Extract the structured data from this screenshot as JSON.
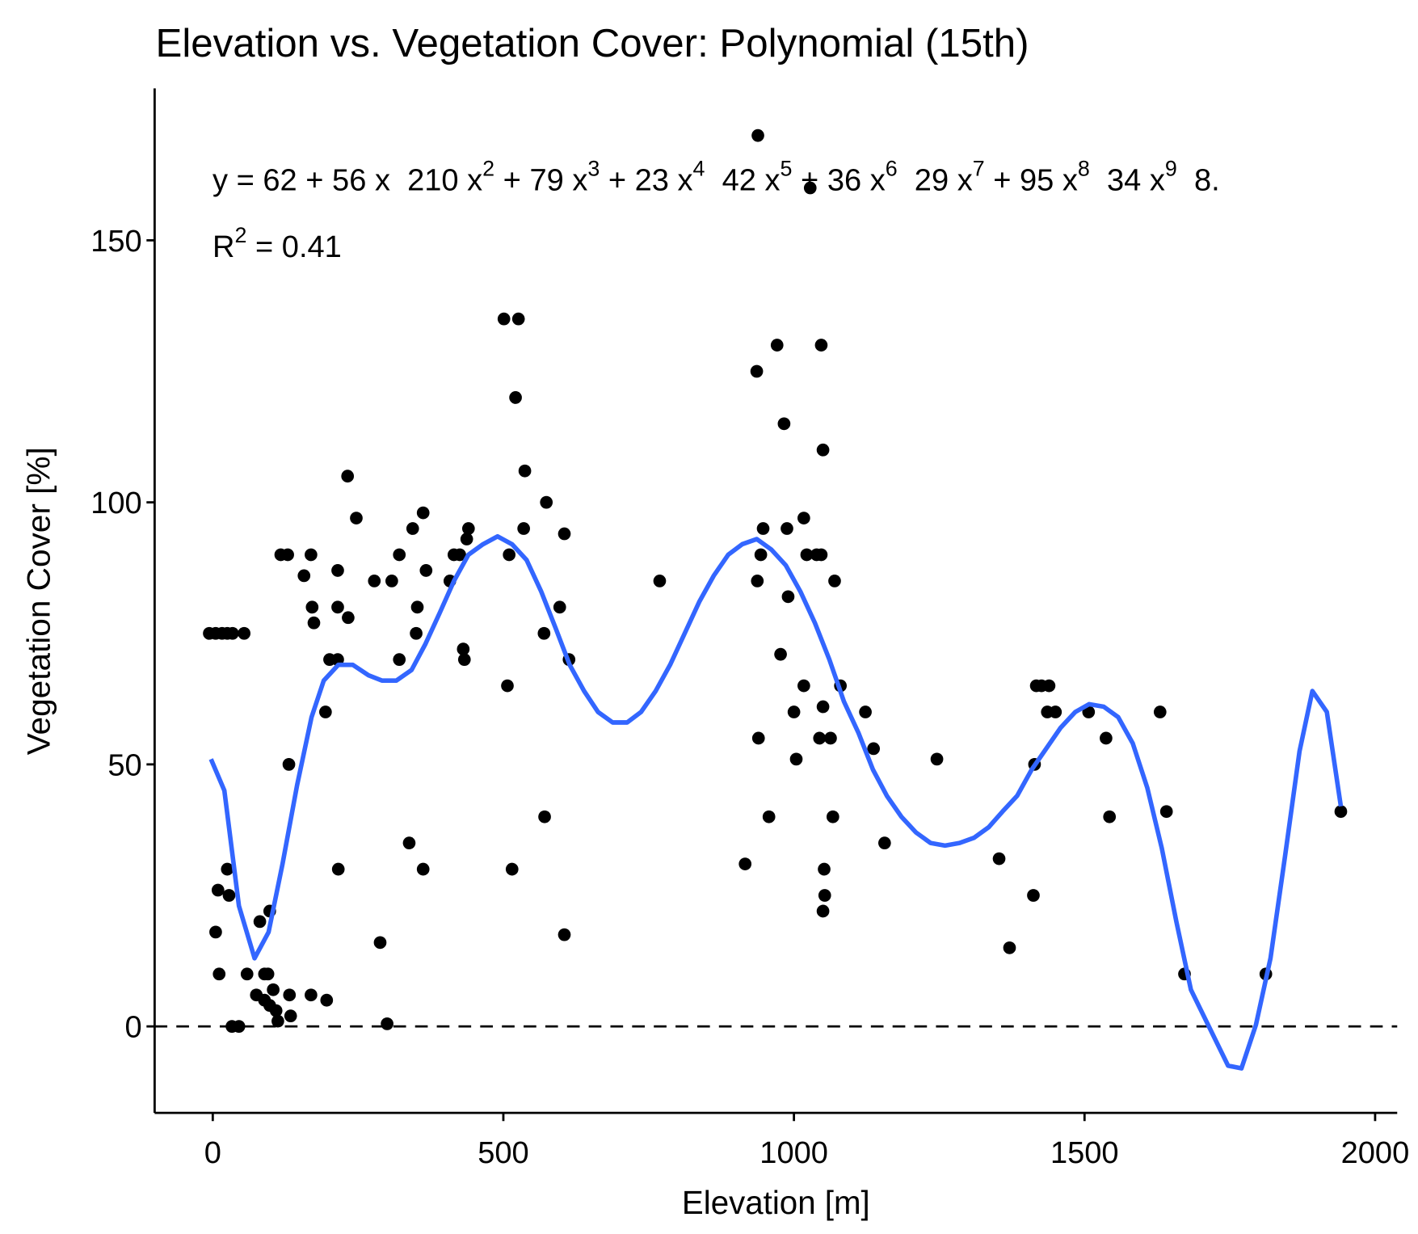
{
  "chart_data": {
    "type": "scatter",
    "title": "Elevation vs. Vegetation Cover: Polynomial (15th)",
    "x_label": "Elevation [m]",
    "y_label": "Vegetation Cover [%]",
    "xlim": [
      -100,
      2038
    ],
    "ylim": [
      -16.5,
      179
    ],
    "xticks": [
      0,
      500,
      1000,
      1500,
      2000
    ],
    "yticks": [
      0,
      50,
      100,
      150
    ],
    "grid": false,
    "hline": 0,
    "point_color": "#000000",
    "points": {
      "x": [
        -6,
        5,
        16,
        25,
        34,
        54,
        9,
        25,
        28,
        5,
        11,
        33,
        45,
        59,
        75,
        81,
        89,
        95,
        89,
        98,
        98,
        104,
        109,
        112,
        134,
        132,
        117,
        129,
        131,
        157,
        169,
        171,
        174,
        169,
        194,
        196,
        201,
        215,
        215,
        215,
        216,
        232,
        233,
        247,
        278,
        288,
        300,
        308,
        321,
        321,
        338,
        344,
        352,
        350,
        362,
        362,
        367,
        408,
        415,
        425,
        431,
        433,
        437,
        440,
        501,
        526,
        521,
        507,
        510,
        515,
        537,
        535,
        574,
        570,
        571,
        597,
        605,
        605,
        613,
        769,
        916,
        938,
        936,
        937,
        939,
        943,
        947,
        957,
        971,
        977,
        983,
        988,
        990,
        1000,
        1004,
        1017,
        1017,
        1022,
        1028,
        1039,
        1047,
        1047,
        1044,
        1050,
        1050,
        1052,
        1053,
        1050,
        1063,
        1067,
        1070,
        1080,
        1123,
        1137,
        1156,
        1246,
        1353,
        1371,
        1412,
        1414,
        1417,
        1426,
        1439,
        1436,
        1450,
        1507,
        1537,
        1543,
        1630,
        1641,
        1672,
        1812,
        1941
      ],
      "y": [
        75,
        75,
        75,
        75,
        75,
        75,
        26,
        30,
        25,
        18,
        10,
        0,
        0,
        10,
        6,
        20,
        10,
        10,
        5,
        22,
        4,
        7,
        3,
        1,
        2,
        6,
        90,
        90,
        50,
        86,
        90,
        80,
        77,
        6,
        60,
        5,
        70,
        70,
        87,
        80,
        30,
        105,
        78,
        97,
        85,
        16,
        0.5,
        85,
        90,
        70,
        35,
        95,
        80,
        75,
        98,
        30,
        87,
        85,
        90,
        90,
        72,
        70,
        93,
        95,
        135,
        135,
        120,
        65,
        90,
        30,
        106,
        95,
        100,
        75,
        40,
        80,
        94,
        17.5,
        70,
        85,
        31,
        170,
        125,
        85,
        55,
        90,
        95,
        40,
        130,
        71,
        115,
        95,
        82,
        60,
        51,
        65,
        97,
        90,
        160,
        90,
        90,
        130,
        55,
        61,
        110,
        30,
        25,
        22,
        55,
        40,
        85,
        65,
        60,
        53,
        35,
        51,
        32,
        15,
        25,
        50,
        65,
        65,
        65,
        60,
        60,
        60,
        55,
        40,
        60,
        41,
        10,
        10,
        41
      ]
    },
    "fit": {
      "color": "#3366ff",
      "x": [
        -3,
        20,
        45,
        72,
        96,
        120,
        145,
        170,
        191,
        216,
        241,
        268,
        291,
        316,
        342,
        366,
        391,
        415,
        440,
        465,
        490,
        515,
        540,
        565,
        590,
        614,
        639,
        663,
        688,
        713,
        737,
        762,
        787,
        812,
        837,
        862,
        887,
        911,
        936,
        961,
        986,
        1011,
        1036,
        1061,
        1086,
        1111,
        1136,
        1160,
        1185,
        1210,
        1235,
        1260,
        1285,
        1310,
        1335,
        1359,
        1384,
        1409,
        1434,
        1459,
        1484,
        1508,
        1533,
        1558,
        1583,
        1608,
        1633,
        1658,
        1683,
        1747,
        1770,
        1795,
        1820,
        1845,
        1870,
        1892,
        1917,
        1941
      ],
      "y": [
        51,
        45,
        23,
        13,
        18,
        31,
        46,
        59,
        66,
        69,
        69,
        67,
        66,
        66,
        68,
        73,
        79,
        85,
        90,
        92,
        93.5,
        92,
        89,
        83,
        76,
        69,
        64,
        60,
        58,
        58,
        60,
        64,
        69,
        75,
        81,
        86,
        90,
        92,
        93,
        91,
        88,
        83,
        77,
        70,
        62,
        56,
        49,
        44,
        40,
        37,
        35,
        34.5,
        35,
        36,
        38,
        41,
        44,
        49,
        53,
        57,
        60,
        61.5,
        61,
        59,
        54,
        45.5,
        34,
        20,
        7,
        -7.5,
        -8,
        0.3,
        13,
        32.5,
        52.5,
        64,
        60,
        42
      ]
    },
    "equation": [
      {
        "text": "y = 62 + 56 x  210 x",
        "sup": "2"
      },
      {
        "text": " + 79 x",
        "sup": "3"
      },
      {
        "text": " + 23 x",
        "sup": "4"
      },
      {
        "text": "  42 x",
        "sup": "5"
      },
      {
        "text": " + 36 x",
        "sup": "6"
      },
      {
        "text": "  29 x",
        "sup": "7"
      },
      {
        "text": " + 95 x",
        "sup": "8"
      },
      {
        "text": "  34 x",
        "sup": "9"
      },
      {
        "text": "  8."
      }
    ],
    "r_squared": [
      {
        "text": "R",
        "sup": "2"
      },
      {
        "text": " = 0.41"
      }
    ]
  }
}
